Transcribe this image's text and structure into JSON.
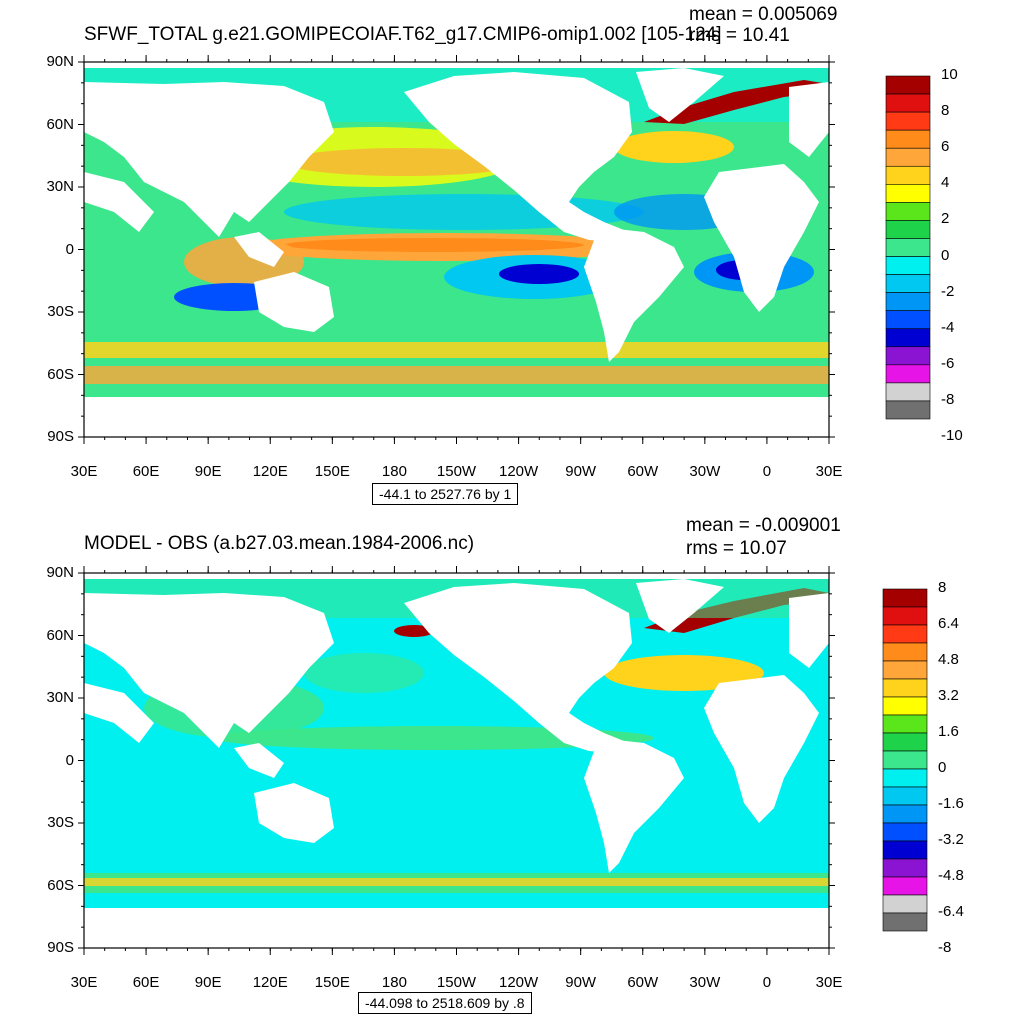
{
  "panels": [
    {
      "title": "SFWF_TOTAL g.e21.GOMIPECOIAF.T62_g17.CMIP6-omip1.002 [105-124]",
      "mean_label": "mean = 0.005069",
      "rms_label": "rms = 10.41",
      "range_label": "-44.1 to 2527.76 by 1",
      "colorbar_labels": [
        "10",
        "8",
        "6",
        "4",
        "2",
        "0",
        "-2",
        "-4",
        "-6",
        "-8",
        "-10"
      ],
      "colorbar_colors": [
        "#a50000",
        "#e01010",
        "#ff3a14",
        "#ff8c1a",
        "#ffa63a",
        "#ffd21c",
        "#ffff00",
        "#5ae61a",
        "#1ed24a",
        "#3ce68c",
        "#00f0f0",
        "#00c8f0",
        "#0096f5",
        "#0050ff",
        "#0000d2",
        "#8a14d2",
        "#e614e6",
        "#d2d2d2",
        "#707070"
      ]
    },
    {
      "title": "MODEL - OBS (a.b27.03.mean.1984-2006.nc)",
      "mean_label": "mean = -0.009001",
      "rms_label": "rms = 10.07",
      "range_label": "-44.098 to 2518.609 by .8",
      "colorbar_labels": [
        "8",
        "6.4",
        "4.8",
        "3.2",
        "1.6",
        "0",
        "-1.6",
        "-3.2",
        "-4.8",
        "-6.4",
        "-8"
      ],
      "colorbar_colors": [
        "#a50000",
        "#e01010",
        "#ff3a14",
        "#ff8c1a",
        "#ffa63a",
        "#ffd21c",
        "#ffff00",
        "#5ae61a",
        "#1ed24a",
        "#3ce68c",
        "#00f0f0",
        "#00c8f0",
        "#0096f5",
        "#0050ff",
        "#0000d2",
        "#8a14d2",
        "#e614e6",
        "#d2d2d2",
        "#707070"
      ]
    }
  ],
  "lat_labels": [
    "90N",
    "60N",
    "30N",
    "0",
    "30S",
    "60S",
    "90S"
  ],
  "lon_labels": [
    "30E",
    "60E",
    "90E",
    "120E",
    "150E",
    "180",
    "150W",
    "120W",
    "90W",
    "60W",
    "30W",
    "0",
    "30E"
  ]
}
